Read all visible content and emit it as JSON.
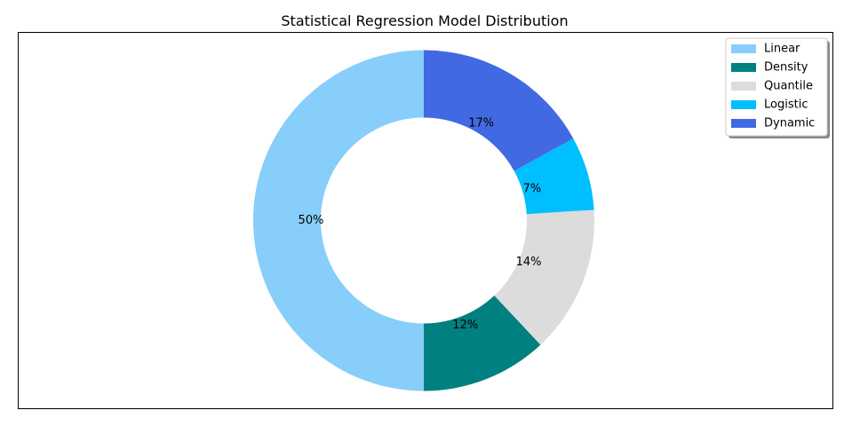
{
  "chart_data": {
    "type": "pie",
    "style": "donut",
    "title": "Statistical Regression Model Distribution",
    "legend_position": "top-right",
    "slices": [
      {
        "label": "Linear",
        "value": 50,
        "pct_label": "50%",
        "color": "#87CEFA"
      },
      {
        "label": "Density",
        "value": 12,
        "pct_label": "12%",
        "color": "#008080"
      },
      {
        "label": "Quantile",
        "value": 14,
        "pct_label": "14%",
        "color": "#DCDCDC"
      },
      {
        "label": "Logistic",
        "value": 7,
        "pct_label": "7%",
        "color": "#00BFFF"
      },
      {
        "label": "Dynamic",
        "value": 17,
        "pct_label": "17%",
        "color": "#4169E1"
      }
    ]
  }
}
